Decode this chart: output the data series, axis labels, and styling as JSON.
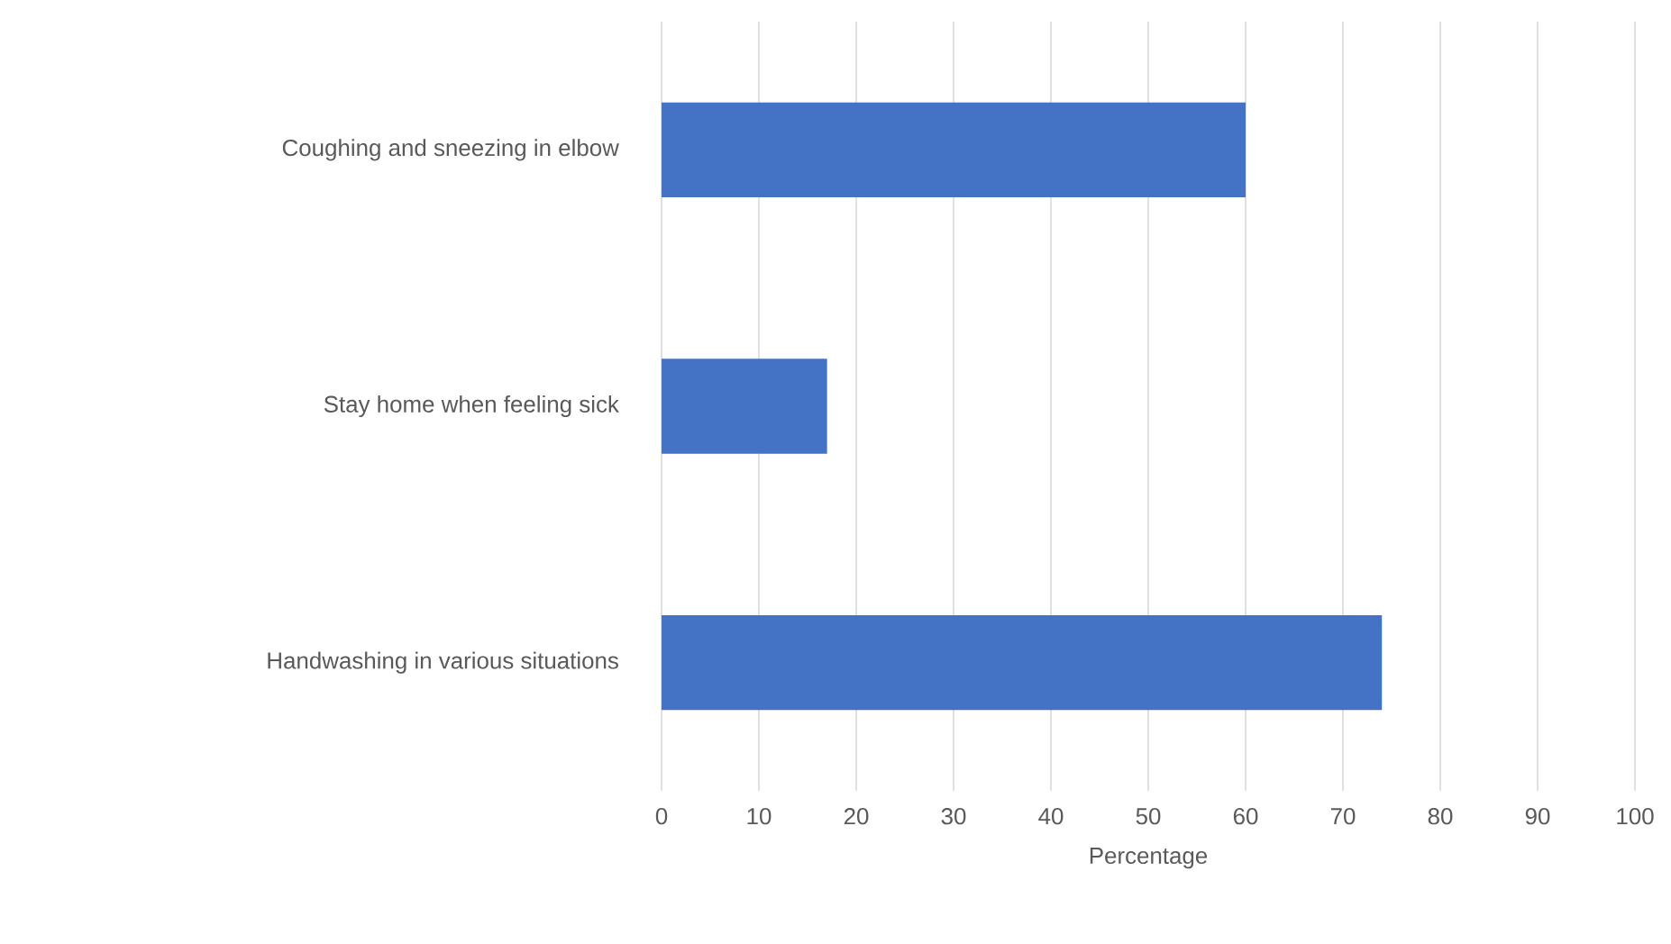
{
  "chart_data": {
    "type": "bar",
    "orientation": "horizontal",
    "xlabel": "Percentage",
    "categories": [
      "Coughing and sneezing in elbow",
      "Stay home when feeling sick",
      "Handwashing in various situations"
    ],
    "values": [
      60,
      17,
      74
    ],
    "color": "#4472c4",
    "xlim": [
      0,
      100
    ],
    "xticks": [
      0,
      10,
      20,
      30,
      40,
      50,
      60,
      70,
      80,
      90,
      100
    ],
    "grid": "x"
  }
}
